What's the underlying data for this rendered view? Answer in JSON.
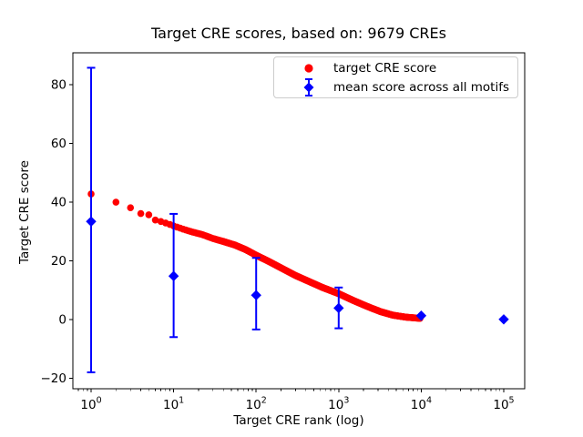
{
  "chart_data": {
    "type": "scatter",
    "title": "Target CRE scores, based on: 9679 CREs",
    "xlabel": "Target CRE rank (log)",
    "ylabel": "Target CRE score",
    "xscale": "log",
    "grid": false,
    "legend_position": "upper right",
    "xlim_log10": [
      -0.221,
      5.254
    ],
    "ylim": [
      -23.6,
      90.9
    ],
    "ytick_values": [
      -20,
      0,
      20,
      40,
      60,
      80
    ],
    "ytick_labels": [
      "−20",
      "0",
      "20",
      "40",
      "60",
      "80"
    ],
    "xtick_base": "10",
    "xtick_exponents": [
      0,
      1,
      2,
      3,
      4,
      5
    ],
    "series": [
      {
        "name": "target CRE score",
        "type": "scatter-curve",
        "color": "#ff0000",
        "marker": "circle",
        "n_points": 9679,
        "anchors": [
          [
            1,
            42.8
          ],
          [
            2,
            40.0
          ],
          [
            3,
            38.1
          ],
          [
            4,
            36.1
          ],
          [
            5,
            35.7
          ],
          [
            6,
            33.9
          ],
          [
            7,
            33.4
          ],
          [
            8,
            32.9
          ],
          [
            9,
            32.4
          ],
          [
            10,
            31.9
          ],
          [
            13,
            30.8
          ],
          [
            17,
            29.8
          ],
          [
            22,
            29.0
          ],
          [
            30,
            27.6
          ],
          [
            40,
            26.6
          ],
          [
            55,
            25.4
          ],
          [
            75,
            23.8
          ],
          [
            100,
            21.9
          ],
          [
            140,
            19.9
          ],
          [
            200,
            17.6
          ],
          [
            300,
            15.0
          ],
          [
            450,
            12.8
          ],
          [
            650,
            10.8
          ],
          [
            1000,
            8.8
          ],
          [
            1500,
            6.5
          ],
          [
            2200,
            4.5
          ],
          [
            3200,
            2.7
          ],
          [
            4500,
            1.5
          ],
          [
            6500,
            0.8
          ],
          [
            9679,
            0.4
          ]
        ]
      },
      {
        "name": "mean score across all motifs",
        "type": "errorbar",
        "color": "#0000ff",
        "marker": "diamond",
        "points": [
          {
            "x": 1,
            "y": 33.4,
            "ylo": -18.0,
            "yhi": 85.8
          },
          {
            "x": 10,
            "y": 14.8,
            "ylo": -6.0,
            "yhi": 36.0
          },
          {
            "x": 100,
            "y": 8.3,
            "ylo": -3.4,
            "yhi": 21.0
          },
          {
            "x": 1000,
            "y": 3.9,
            "ylo": -3.0,
            "yhi": 10.9
          },
          {
            "x": 10000,
            "y": 1.3,
            "ylo": 1.3,
            "yhi": 1.3
          },
          {
            "x": 100000,
            "y": 0.05,
            "ylo": 0.05,
            "yhi": 0.05
          }
        ]
      }
    ]
  }
}
